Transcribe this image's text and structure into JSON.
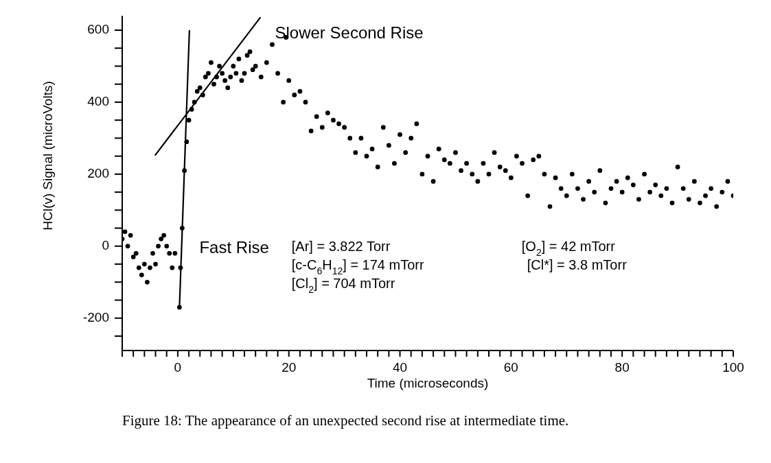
{
  "chart_data": {
    "type": "scatter",
    "xlabel": "Time (microseconds)",
    "ylabel": "HCl(v) Signal (microVolts)",
    "xlim": [
      -10,
      100
    ],
    "ylim": [
      -290,
      640
    ],
    "xticks": [
      {
        "value": -10,
        "label": null
      },
      {
        "value": -8,
        "label": null
      },
      {
        "value": -6,
        "label": null
      },
      {
        "value": -4,
        "label": null
      },
      {
        "value": -2,
        "label": null
      },
      0,
      {
        "value": 2,
        "label": null
      },
      {
        "value": 4,
        "label": null
      },
      {
        "value": 6,
        "label": null
      },
      {
        "value": 8,
        "label": null
      },
      {
        "value": 10,
        "label": null
      },
      {
        "value": 12,
        "label": null
      },
      {
        "value": 14,
        "label": null
      },
      {
        "value": 16,
        "label": null
      },
      {
        "value": 18,
        "label": null
      },
      20,
      {
        "value": 22,
        "label": null
      },
      {
        "value": 24,
        "label": null
      },
      {
        "value": 26,
        "label": null
      },
      {
        "value": 28,
        "label": null
      },
      {
        "value": 30,
        "label": null
      },
      {
        "value": 32,
        "label": null
      },
      {
        "value": 34,
        "label": null
      },
      {
        "value": 36,
        "label": null
      },
      {
        "value": 38,
        "label": null
      },
      40,
      {
        "value": 42,
        "label": null
      },
      {
        "value": 44,
        "label": null
      },
      {
        "value": 46,
        "label": null
      },
      {
        "value": 48,
        "label": null
      },
      {
        "value": 50,
        "label": null
      },
      {
        "value": 52,
        "label": null
      },
      {
        "value": 54,
        "label": null
      },
      {
        "value": 56,
        "label": null
      },
      {
        "value": 58,
        "label": null
      },
      60,
      {
        "value": 62,
        "label": null
      },
      {
        "value": 64,
        "label": null
      },
      {
        "value": 66,
        "label": null
      },
      {
        "value": 68,
        "label": null
      },
      {
        "value": 70,
        "label": null
      },
      {
        "value": 72,
        "label": null
      },
      {
        "value": 74,
        "label": null
      },
      {
        "value": 76,
        "label": null
      },
      {
        "value": 78,
        "label": null
      },
      80,
      {
        "value": 82,
        "label": null
      },
      {
        "value": 84,
        "label": null
      },
      {
        "value": 86,
        "label": null
      },
      {
        "value": 88,
        "label": null
      },
      {
        "value": 90,
        "label": null
      },
      {
        "value": 92,
        "label": null
      },
      {
        "value": 94,
        "label": null
      },
      {
        "value": 96,
        "label": null
      },
      {
        "value": 98,
        "label": null
      },
      100
    ],
    "yticks": [
      {
        "value": -250,
        "label": null
      },
      -200,
      {
        "value": -150,
        "label": null
      },
      {
        "value": -100,
        "label": null
      },
      {
        "value": -50,
        "label": null
      },
      0,
      {
        "value": 50,
        "label": null
      },
      {
        "value": 100,
        "label": null
      },
      {
        "value": 150,
        "label": null
      },
      200,
      {
        "value": 250,
        "label": null
      },
      {
        "value": 300,
        "label": null
      },
      {
        "value": 350,
        "label": null
      },
      400,
      {
        "value": 450,
        "label": null
      },
      {
        "value": 500,
        "label": null
      },
      {
        "value": 550,
        "label": null
      },
      600
    ],
    "grid": false,
    "legend": false,
    "series": [
      {
        "color": "#000000",
        "marker": "circle",
        "x": [
          -10,
          -9.5,
          -9,
          -8.5,
          -8,
          -7.5,
          -7,
          -6.5,
          -6,
          -5.5,
          -5,
          -4.5,
          -4,
          -3.5,
          -3,
          -2.5,
          -2,
          -1.5,
          -1,
          -0.5,
          0.3,
          0.5,
          0.8,
          1.2,
          1.6,
          2,
          2.5,
          3,
          3.5,
          4,
          4.5,
          5,
          5.5,
          6,
          6.5,
          7,
          7.5,
          8,
          8.5,
          9,
          9.5,
          10,
          10.5,
          11,
          11.5,
          12,
          12.5,
          13,
          13.5,
          14,
          15,
          16,
          17,
          18,
          19,
          19.5,
          20,
          21,
          22,
          23,
          24,
          25,
          26,
          27,
          28,
          29,
          30,
          31,
          32,
          33,
          34,
          35,
          36,
          37,
          38,
          39,
          40,
          41,
          42,
          43,
          44,
          45,
          46,
          47,
          48,
          49,
          50,
          51,
          52,
          53,
          54,
          55,
          56,
          57,
          58,
          59,
          60,
          61,
          62,
          63,
          64,
          65,
          66,
          67,
          68,
          69,
          70,
          71,
          72,
          73,
          74,
          75,
          76,
          77,
          78,
          79,
          80,
          81,
          82,
          83,
          84,
          85,
          86,
          87,
          88,
          89,
          90,
          91,
          92,
          93,
          94,
          95,
          96,
          97,
          98,
          99,
          100
        ],
        "values": [
          20,
          40,
          0,
          30,
          -30,
          -20,
          -60,
          -80,
          -50,
          -100,
          -60,
          -20,
          -50,
          0,
          20,
          30,
          0,
          -20,
          -60,
          -20,
          -170,
          -60,
          50,
          210,
          290,
          350,
          380,
          400,
          430,
          440,
          420,
          470,
          480,
          510,
          450,
          470,
          500,
          480,
          460,
          440,
          470,
          500,
          480,
          520,
          460,
          480,
          530,
          540,
          490,
          500,
          470,
          510,
          560,
          480,
          400,
          580,
          460,
          420,
          430,
          400,
          320,
          360,
          330,
          370,
          350,
          340,
          330,
          300,
          260,
          300,
          250,
          270,
          220,
          330,
          280,
          230,
          310,
          260,
          300,
          340,
          200,
          250,
          180,
          270,
          240,
          230,
          260,
          210,
          230,
          200,
          180,
          230,
          200,
          260,
          220,
          210,
          190,
          250,
          230,
          140,
          240,
          250,
          200,
          110,
          190,
          160,
          140,
          200,
          160,
          130,
          180,
          150,
          210,
          120,
          160,
          180,
          150,
          190,
          170,
          130,
          200,
          150,
          170,
          140,
          160,
          120,
          220,
          160,
          130,
          180,
          120,
          140,
          160,
          110,
          150,
          180,
          140
        ]
      },
      {
        "type": "line",
        "color": "#000000",
        "x": [
          0.3,
          2.1
        ],
        "values": [
          -172,
          600
        ]
      },
      {
        "type": "line",
        "color": "#000000",
        "x": [
          -4.1,
          14.9
        ],
        "values": [
          252,
          636
        ]
      }
    ],
    "annotations": [
      "Slower Second Rise",
      "Fast Rise",
      "[Ar] = 3.822 Torr",
      "[O$_{2}$] = 42 mTorr",
      "[c-C$_{6}$H$_{12}$] = 174 mTorr",
      "[Cl*] = 3.8 mTorr",
      "[Cl$_{2}$] = 704 mTorr",
      "Figure 18: The appearance of an unexpected second rise at intermediate time."
    ]
  }
}
